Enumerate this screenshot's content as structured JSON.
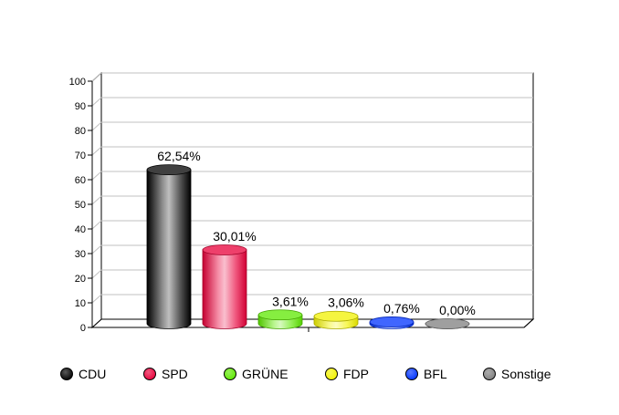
{
  "chart_data": {
    "type": "bar",
    "title": "",
    "xlabel": "",
    "ylabel": "",
    "ylim": [
      0,
      100
    ],
    "yticks": [
      0,
      10,
      20,
      30,
      40,
      50,
      60,
      70,
      80,
      90,
      100
    ],
    "grid": true,
    "legend_position": "bottom",
    "categories": [
      "CDU",
      "SPD",
      "GRÜNE",
      "FDP",
      "BFL",
      "Sonstige"
    ],
    "values": [
      62.54,
      30.01,
      3.61,
      3.06,
      0.76,
      0.0
    ],
    "value_labels": [
      "62,54%",
      "30,01%",
      "3,61%",
      "3,06%",
      "0,76%",
      "0,00%"
    ],
    "colors": [
      "#000000",
      "#e8003a",
      "#5ee800",
      "#f2f200",
      "#0033ff",
      "#7f7f7f"
    ]
  },
  "legend": {
    "items": [
      {
        "label": "CDU",
        "color": "#000000"
      },
      {
        "label": "SPD",
        "color": "#e8003a"
      },
      {
        "label": "GRÜNE",
        "color": "#5ee800"
      },
      {
        "label": "FDP",
        "color": "#f2f200"
      },
      {
        "label": "BFL",
        "color": "#0033ff"
      },
      {
        "label": "Sonstige",
        "color": "#7f7f7f"
      }
    ]
  }
}
